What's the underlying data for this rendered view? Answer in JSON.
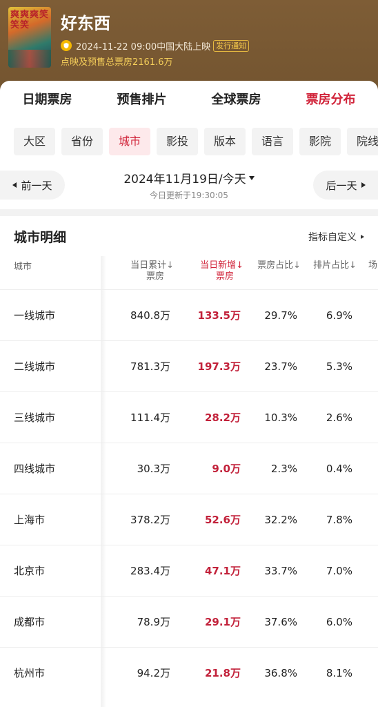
{
  "header": {
    "poster_text": "爽爽爽笑笑笑",
    "title": "好东西",
    "release": "2024-11-22 09:00中国大陆上映",
    "notify_label": "发行通知",
    "total": "点映及预售总票房2161.6万"
  },
  "main_tabs": [
    {
      "label": "日期票房"
    },
    {
      "label": "预售排片"
    },
    {
      "label": "全球票房"
    },
    {
      "label": "票房分布"
    }
  ],
  "sub_tabs": [
    {
      "label": "大区"
    },
    {
      "label": "省份"
    },
    {
      "label": "城市"
    },
    {
      "label": "影投"
    },
    {
      "label": "版本"
    },
    {
      "label": "语言"
    },
    {
      "label": "影院"
    },
    {
      "label": "院线"
    }
  ],
  "date_bar": {
    "prev": "前一天",
    "next": "后一天",
    "date": "2024年11月19日/今天",
    "updated": "今日更新于19:30:05"
  },
  "section": {
    "title": "城市明细",
    "custom": "指标自定义"
  },
  "table": {
    "headers": {
      "city": "城市",
      "cum_1": "当日累计↓",
      "cum_2": "票房",
      "inc_1": "当日新增↓",
      "inc_2": "票房",
      "bo": "票房占比↓",
      "sc": "排片占比↓",
      "more": "场"
    },
    "rows": [
      {
        "name": "一线城市",
        "cum": "840.8万",
        "inc": "133.5万",
        "bo": "29.7%",
        "sc": "6.9%"
      },
      {
        "name": "二线城市",
        "cum": "781.3万",
        "inc": "197.3万",
        "bo": "23.7%",
        "sc": "5.3%"
      },
      {
        "name": "三线城市",
        "cum": "111.4万",
        "inc": "28.2万",
        "bo": "10.3%",
        "sc": "2.6%"
      },
      {
        "name": "四线城市",
        "cum": "30.3万",
        "inc": "9.0万",
        "bo": "2.3%",
        "sc": "0.4%"
      },
      {
        "name": "上海市",
        "cum": "378.2万",
        "inc": "52.6万",
        "bo": "32.2%",
        "sc": "7.8%"
      },
      {
        "name": "北京市",
        "cum": "283.4万",
        "inc": "47.1万",
        "bo": "33.7%",
        "sc": "7.0%"
      },
      {
        "name": "成都市",
        "cum": "78.9万",
        "inc": "29.1万",
        "bo": "37.6%",
        "sc": "6.0%"
      },
      {
        "name": "杭州市",
        "cum": "94.2万",
        "inc": "21.8万",
        "bo": "36.8%",
        "sc": "8.1%"
      }
    ]
  },
  "colors": {
    "accent": "#d1243a",
    "header_bg": "#7a5a33",
    "badge": "#f5b800"
  }
}
